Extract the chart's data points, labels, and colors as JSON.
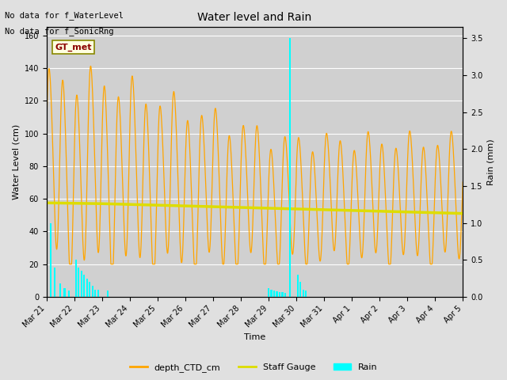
{
  "title": "Water level and Rain",
  "xlabel": "Time",
  "ylabel_left": "Water Level (cm)",
  "ylabel_right": "Rain (mm)",
  "text_lines": [
    "No data for f_WaterLevel",
    "No data for f_SonicRng"
  ],
  "gt_met_label": "GT_met",
  "ylim_left": [
    0,
    165
  ],
  "ylim_right": [
    0,
    3.65
  ],
  "yticks_left": [
    0,
    20,
    40,
    60,
    80,
    100,
    120,
    140,
    160
  ],
  "yticks_right": [
    0.0,
    0.5,
    1.0,
    1.5,
    2.0,
    2.5,
    3.0,
    3.5
  ],
  "fig_bg_color": "#e0e0e0",
  "plot_bg_color": "#d0d0d0",
  "ctd_color": "#FFA500",
  "staff_color": "#DDDD00",
  "rain_color": "#00FFFF",
  "legend_labels": [
    "depth_CTD_cm",
    "Staff Gauge",
    "Rain"
  ],
  "total_days": 15,
  "date_labels": [
    "Mar 21",
    "Mar 22",
    "Mar 23",
    "Mar 24",
    "Mar 25",
    "Mar 26",
    "Mar 27",
    "Mar 28",
    "Mar 29",
    "Mar 30",
    "Mar 31",
    "Apr 1",
    "Apr 2",
    "Apr 3",
    "Apr 4",
    "Apr 5"
  ]
}
